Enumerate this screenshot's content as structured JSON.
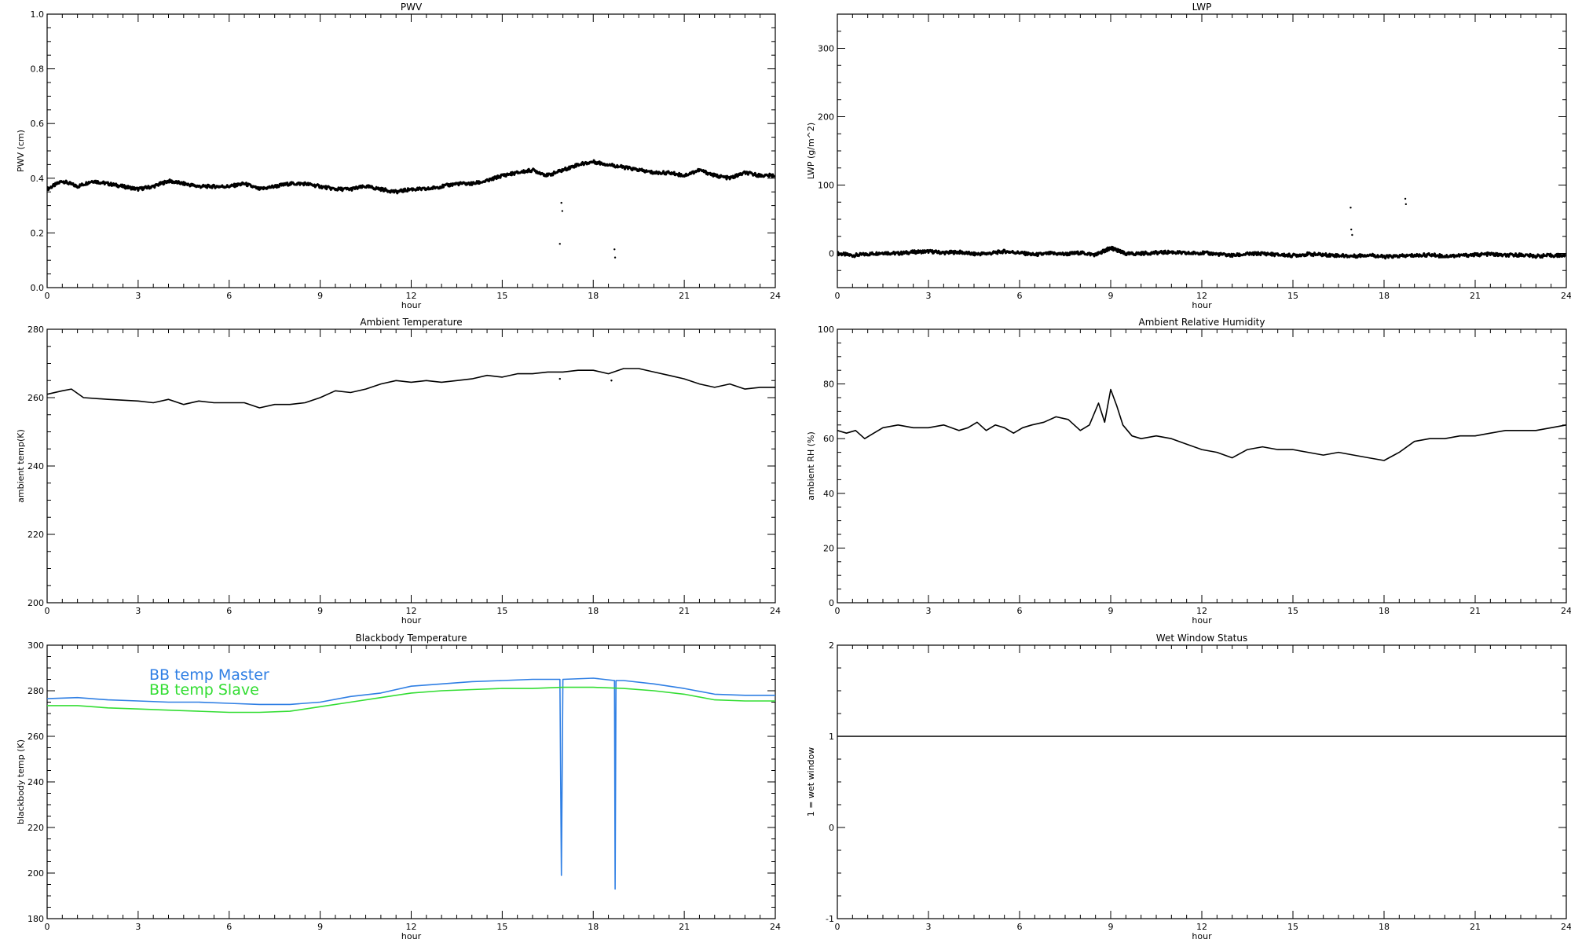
{
  "chart_data": [
    {
      "id": "pwv",
      "type": "scatter",
      "title": "PWV",
      "xlabel": "hour",
      "ylabel": "PWV (cm)",
      "xlim": [
        0,
        24
      ],
      "ylim": [
        0,
        1
      ],
      "xticks": [
        0,
        3,
        6,
        9,
        12,
        15,
        18,
        21,
        24
      ],
      "yticks": [
        0,
        0.2,
        0.4,
        0.6,
        0.8,
        1
      ],
      "ytick_labels": [
        "0.0",
        "0.2",
        "0.4",
        "0.6",
        "0.8",
        "1.0"
      ],
      "series": [
        {
          "color": "#000000",
          "x": [
            0,
            0.5,
            1,
            1.5,
            2,
            2.5,
            3,
            3.5,
            4,
            4.5,
            5,
            5.5,
            6,
            6.5,
            7,
            7.5,
            8,
            8.5,
            9,
            9.5,
            10,
            10.5,
            11,
            11.5,
            12,
            12.5,
            13,
            13.5,
            14,
            14.5,
            15,
            15.5,
            16,
            16.5,
            17,
            17.5,
            18,
            18.5,
            19,
            19.5,
            20,
            20.5,
            21,
            21.5,
            22,
            22.5,
            23,
            23.5,
            24
          ],
          "y": [
            0.36,
            0.39,
            0.37,
            0.39,
            0.38,
            0.37,
            0.36,
            0.37,
            0.39,
            0.38,
            0.37,
            0.37,
            0.37,
            0.38,
            0.36,
            0.37,
            0.38,
            0.38,
            0.37,
            0.36,
            0.36,
            0.37,
            0.36,
            0.35,
            0.36,
            0.36,
            0.37,
            0.38,
            0.38,
            0.39,
            0.41,
            0.42,
            0.43,
            0.41,
            0.43,
            0.45,
            0.46,
            0.45,
            0.44,
            0.43,
            0.42,
            0.42,
            0.41,
            0.43,
            0.41,
            0.4,
            0.42,
            0.41,
            0.41
          ]
        }
      ],
      "outliers": {
        "x": [
          16.95,
          16.98,
          16.9,
          18.7,
          18.72
        ],
        "y": [
          0.31,
          0.28,
          0.16,
          0.14,
          0.11
        ]
      }
    },
    {
      "id": "lwp",
      "type": "scatter",
      "title": "LWP",
      "xlabel": "hour",
      "ylabel": "LWP (g/m^2)",
      "xlim": [
        0,
        24
      ],
      "ylim": [
        -50,
        350
      ],
      "xticks": [
        0,
        3,
        6,
        9,
        12,
        15,
        18,
        21,
        24
      ],
      "yticks": [
        0,
        100,
        200,
        300
      ],
      "ytick_labels": [
        "0",
        "100",
        "200",
        "300"
      ],
      "series": [
        {
          "color": "#000000",
          "x": [
            0,
            0.5,
            1,
            1.5,
            2,
            2.5,
            3,
            3.5,
            4,
            4.5,
            5,
            5.5,
            6,
            6.5,
            7,
            7.5,
            8,
            8.5,
            8.8,
            9,
            9.2,
            9.5,
            10,
            10.5,
            11,
            11.5,
            12,
            12.5,
            13,
            13.5,
            14,
            14.5,
            15,
            15.5,
            16,
            16.5,
            17,
            17.5,
            18,
            18.5,
            19,
            19.5,
            20,
            20.5,
            21,
            21.5,
            22,
            22.5,
            23,
            23.5,
            24
          ],
          "y": [
            0,
            -3,
            -1,
            1,
            0,
            2,
            3,
            1,
            2,
            -1,
            0,
            3,
            1,
            -2,
            0,
            -1,
            1,
            -2,
            4,
            8,
            5,
            -1,
            0,
            1,
            2,
            0,
            1,
            -1,
            -3,
            -1,
            0,
            -2,
            -3,
            -1,
            -2,
            -3,
            -4,
            -2,
            -5,
            -4,
            -3,
            -2,
            -4,
            -3,
            -2,
            -1,
            -3,
            -2,
            -4,
            -3,
            -3
          ]
        }
      ],
      "outliers": {
        "x": [
          16.9,
          16.92,
          16.95,
          18.7,
          18.72
        ],
        "y": [
          67,
          35,
          27,
          80,
          72
        ]
      }
    },
    {
      "id": "ambient-temp",
      "type": "line",
      "title": "Ambient Temperature",
      "xlabel": "hour",
      "ylabel": "ambient temp(K)",
      "xlim": [
        0,
        24
      ],
      "ylim": [
        200,
        280
      ],
      "xticks": [
        0,
        3,
        6,
        9,
        12,
        15,
        18,
        21,
        24
      ],
      "yticks": [
        200,
        220,
        240,
        260,
        280
      ],
      "ytick_labels": [
        "200",
        "220",
        "240",
        "260",
        "280"
      ],
      "series": [
        {
          "color": "#000000",
          "x": [
            0,
            0.5,
            0.8,
            1.2,
            2,
            3,
            3.5,
            4,
            4.5,
            5,
            5.5,
            6,
            6.5,
            7,
            7.5,
            8,
            8.5,
            9,
            9.5,
            10,
            10.5,
            11,
            11.5,
            12,
            12.5,
            13,
            13.5,
            14,
            14.5,
            15,
            15.5,
            16,
            16.5,
            17,
            17.5,
            18,
            18.5,
            19,
            19.5,
            20,
            20.5,
            21,
            21.5,
            22,
            22.5,
            23,
            23.5,
            24
          ],
          "y": [
            261,
            262,
            262.5,
            260,
            259.5,
            259,
            258.5,
            259.5,
            258,
            259,
            258.5,
            258.5,
            258.5,
            257,
            258,
            258,
            258.5,
            260,
            262,
            261.5,
            262.5,
            264,
            265,
            264.5,
            265,
            264.5,
            265,
            265.5,
            266.5,
            266,
            267,
            267,
            267.5,
            267.5,
            268,
            268,
            267,
            268.5,
            268.5,
            267.5,
            266.5,
            265.5,
            264,
            263,
            264,
            262.5,
            263,
            263
          ]
        }
      ],
      "outliers": {
        "x": [
          16.9,
          18.6
        ],
        "y": [
          265.5,
          265
        ]
      }
    },
    {
      "id": "ambient-rh",
      "type": "line",
      "title": "Ambient Relative Humidity",
      "xlabel": "hour",
      "ylabel": "ambient RH (%)",
      "xlim": [
        0,
        24
      ],
      "ylim": [
        0,
        100
      ],
      "xticks": [
        0,
        3,
        6,
        9,
        12,
        15,
        18,
        21,
        24
      ],
      "yticks": [
        0,
        20,
        40,
        60,
        80,
        100
      ],
      "ytick_labels": [
        "0",
        "20",
        "40",
        "60",
        "80",
        "100"
      ],
      "series": [
        {
          "color": "#000000",
          "x": [
            0,
            0.3,
            0.6,
            0.9,
            1.2,
            1.5,
            2,
            2.5,
            3,
            3.5,
            4,
            4.3,
            4.6,
            4.9,
            5.2,
            5.5,
            5.8,
            6.1,
            6.4,
            6.8,
            7.2,
            7.6,
            8,
            8.3,
            8.6,
            8.8,
            9,
            9.2,
            9.4,
            9.7,
            10,
            10.5,
            11,
            11.5,
            12,
            12.5,
            13,
            13.5,
            14,
            14.5,
            15,
            15.5,
            16,
            16.5,
            17,
            17.5,
            18,
            18.5,
            19,
            19.5,
            20,
            20.5,
            21,
            21.5,
            22,
            22.5,
            23,
            23.5,
            24
          ],
          "y": [
            63,
            62,
            63,
            60,
            62,
            64,
            65,
            64,
            64,
            65,
            63,
            64,
            66,
            63,
            65,
            64,
            62,
            64,
            65,
            66,
            68,
            67,
            63,
            65,
            73,
            66,
            78,
            72,
            65,
            61,
            60,
            61,
            60,
            58,
            56,
            55,
            53,
            56,
            57,
            56,
            56,
            55,
            54,
            55,
            54,
            53,
            52,
            55,
            59,
            60,
            60,
            61,
            61,
            62,
            63,
            63,
            63,
            64,
            65
          ]
        }
      ]
    },
    {
      "id": "bb-temp",
      "type": "line",
      "title": "Blackbody Temperature",
      "xlabel": "hour",
      "ylabel": "blackbody temp (K)",
      "xlim": [
        0,
        24
      ],
      "ylim": [
        180,
        300
      ],
      "xticks": [
        0,
        3,
        6,
        9,
        12,
        15,
        18,
        21,
        24
      ],
      "yticks": [
        180,
        200,
        220,
        240,
        260,
        280,
        300
      ],
      "ytick_labels": [
        "180",
        "200",
        "220",
        "240",
        "260",
        "280",
        "300"
      ],
      "legend": "top-left",
      "series": [
        {
          "name": "BB temp Master",
          "color": "#2f7fe4",
          "x": [
            0,
            1,
            2,
            3,
            4,
            5,
            6,
            7,
            8,
            9,
            10,
            11,
            12,
            13,
            14,
            15,
            16,
            16.9,
            16.95,
            17.0,
            18,
            18.7,
            18.72,
            18.75,
            19,
            20,
            21,
            22,
            23,
            24
          ],
          "y": [
            276.5,
            277,
            276,
            275.5,
            275,
            275,
            274.5,
            274,
            274,
            275,
            277.5,
            279,
            282,
            283,
            284,
            284.5,
            285,
            285,
            199,
            285,
            285.5,
            284.5,
            193,
            284.5,
            284.5,
            283,
            281,
            278.5,
            278,
            278
          ]
        },
        {
          "name": "BB temp Slave",
          "color": "#33dd33",
          "x": [
            0,
            1,
            2,
            3,
            4,
            5,
            6,
            7,
            8,
            9,
            10,
            11,
            12,
            13,
            14,
            15,
            16,
            17,
            18,
            19,
            20,
            21,
            22,
            23,
            24
          ],
          "y": [
            273.5,
            273.5,
            272.5,
            272,
            271.5,
            271,
            270.5,
            270.5,
            271,
            273,
            275,
            277,
            279,
            280,
            280.5,
            281,
            281,
            281.5,
            281.5,
            281,
            280,
            278.5,
            276,
            275.5,
            275.5
          ]
        }
      ]
    },
    {
      "id": "wet-window",
      "type": "line",
      "title": "Wet Window Status",
      "xlabel": "hour",
      "ylabel": "1 = wet window",
      "xlim": [
        0,
        24
      ],
      "ylim": [
        -1,
        2
      ],
      "xticks": [
        0,
        3,
        6,
        9,
        12,
        15,
        18,
        21,
        24
      ],
      "yticks": [
        -1,
        0,
        1,
        2
      ],
      "ytick_labels": [
        "-1",
        "0",
        "1",
        "2"
      ],
      "series": [
        {
          "color": "#000000",
          "x": [
            0,
            24
          ],
          "y": [
            1,
            1
          ]
        }
      ]
    }
  ]
}
